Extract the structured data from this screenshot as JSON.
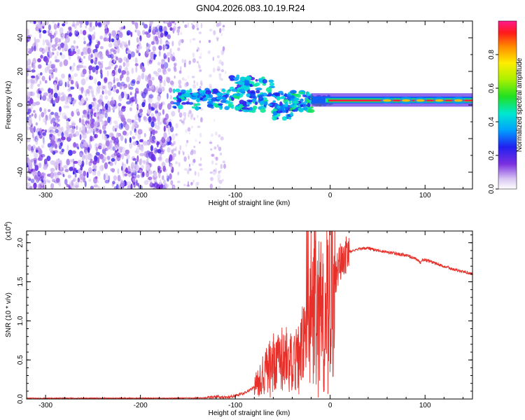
{
  "title": "GN04.2026.083.10.19.R24",
  "chart_data": [
    {
      "type": "heatmap",
      "name": "spectrogram",
      "xlabel": "Height of straight line (km)",
      "ylabel": "Frequency (Hz)",
      "xlim": [
        -320,
        150
      ],
      "ylim": [
        -50,
        50
      ],
      "xticks": [
        -300,
        -200,
        -100,
        0,
        100
      ],
      "yticks": [
        -40,
        -20,
        0,
        20,
        40
      ],
      "colorbar": {
        "label": "Normalized spectral amplitude",
        "range": [
          0,
          1
        ],
        "ticks": [
          0.0,
          0.2,
          0.4,
          0.6,
          0.8
        ]
      },
      "regions": [
        {
          "label": "noise",
          "x_range": [
            -320,
            -165
          ],
          "freq_range": [
            -50,
            50
          ],
          "amplitude": 0.1
        },
        {
          "label": "sparse noise",
          "x_range": [
            -165,
            -110
          ],
          "freq_range": [
            -50,
            50
          ],
          "amplitude": 0.05
        },
        {
          "label": "emerging signal",
          "x_range": [
            -165,
            -105
          ],
          "freq_range": [
            -2,
            10
          ],
          "amplitude": 0.35
        },
        {
          "label": "broad signal",
          "x_range": [
            -100,
            -60
          ],
          "freq_range": [
            -5,
            18
          ],
          "amplitude": 0.4
        },
        {
          "label": "narrowing signal",
          "x_range": [
            -60,
            -20
          ],
          "freq_range": [
            -8,
            10
          ],
          "amplitude": 0.45
        },
        {
          "label": "carrier",
          "x_range": [
            -20,
            150
          ],
          "freq_range": [
            1,
            4
          ],
          "amplitude": 0.95
        }
      ]
    },
    {
      "type": "line",
      "name": "snr",
      "xlabel": "Height of straight line (km)",
      "ylabel": "SNR (10 * v/v)",
      "y_multiplier": "(x10",
      "y_exponent": "4",
      "xlim": [
        -320,
        150
      ],
      "ylim": [
        0,
        2.15
      ],
      "xticks": [
        -300,
        -200,
        -100,
        0,
        100
      ],
      "yticks": [
        0.0,
        0.5,
        1.0,
        1.5,
        2.0
      ],
      "color": "#e8302a",
      "series": [
        {
          "name": "SNR",
          "x": [
            -320,
            -250,
            -180,
            -150,
            -130,
            -120,
            -110,
            -100,
            -90,
            -80,
            -70,
            -60,
            -50,
            -40,
            -30,
            -25,
            -20,
            -15,
            -10,
            -5,
            0,
            5,
            10,
            20,
            30,
            40,
            50,
            60,
            70,
            80,
            90,
            95,
            97,
            100,
            110,
            120,
            130,
            140,
            150
          ],
          "y": [
            0.01,
            0.01,
            0.01,
            0.012,
            0.015,
            0.03,
            0.02,
            0.04,
            0.08,
            0.15,
            0.3,
            0.45,
            0.5,
            0.45,
            0.6,
            0.8,
            1.1,
            1.2,
            1.1,
            1.1,
            1.25,
            1.55,
            1.75,
            1.88,
            1.92,
            1.93,
            1.9,
            1.88,
            1.86,
            1.84,
            1.8,
            1.74,
            1.78,
            1.78,
            1.74,
            1.7,
            1.66,
            1.63,
            1.6
          ]
        }
      ]
    }
  ]
}
